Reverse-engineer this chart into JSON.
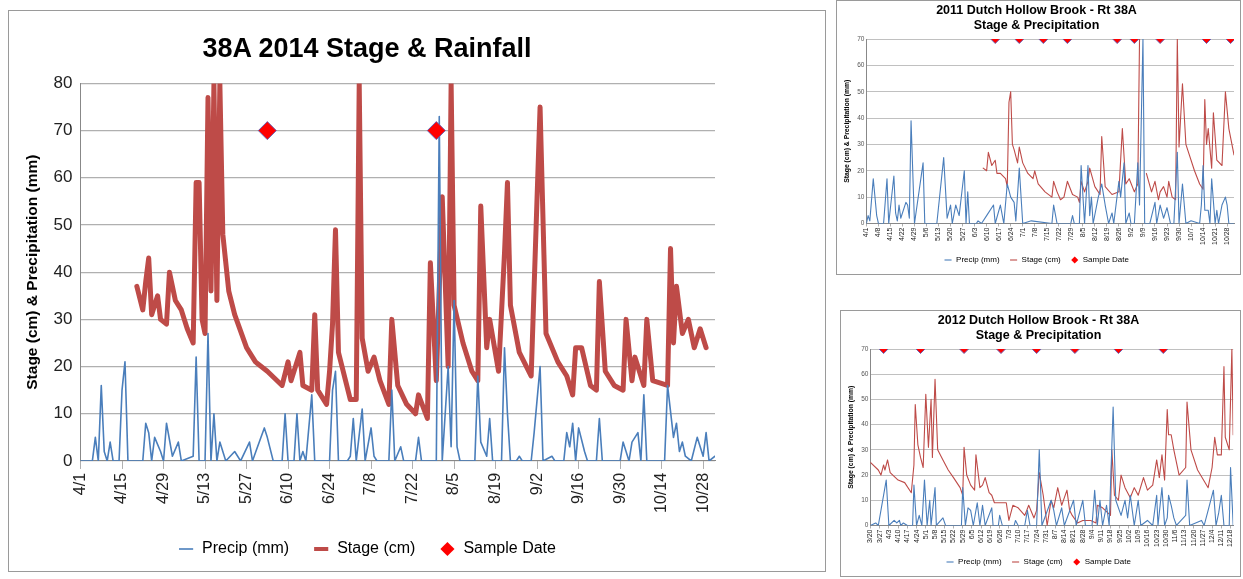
{
  "chart_data": [
    {
      "type": "line",
      "title": "38A 2014 Stage & Rainfall",
      "ylabel": "Stage (cm) & Precipitation (mm)",
      "xlim": [
        "--04-01",
        "--11-01"
      ],
      "ylim": [
        0,
        80
      ],
      "yticks": [
        0,
        10,
        20,
        30,
        40,
        50,
        60,
        70,
        80
      ],
      "grid": "y",
      "legend": "bottom",
      "xticks": [
        {
          "value": "--04-01",
          "label": "4/1"
        },
        {
          "value": "--04-15",
          "label": "4/15"
        },
        {
          "value": "--04-29",
          "label": "4/29"
        },
        {
          "value": "--05-13",
          "label": "5/13"
        },
        {
          "value": "--05-27",
          "label": "5/27"
        },
        {
          "value": "--06-10",
          "label": "6/10"
        },
        {
          "value": "--06-24",
          "label": "6/24"
        },
        {
          "value": "--07-08",
          "label": "7/8"
        },
        {
          "value": "--07-22",
          "label": "7/22"
        },
        {
          "value": "--08-05",
          "label": "8/5"
        },
        {
          "value": "--08-19",
          "label": "8/19"
        },
        {
          "value": "--09-02",
          "label": "9/2"
        },
        {
          "value": "--09-16",
          "label": "9/16"
        },
        {
          "value": "--09-30",
          "label": "9/30"
        },
        {
          "value": "--10-14",
          "label": "10/14"
        },
        {
          "value": "--10-28",
          "label": "10/28"
        }
      ],
      "series": [
        {
          "name": "Precip (mm)",
          "type": "line",
          "color": "#4a7ebb",
          "x": [
            "--04-01",
            "--04-05",
            "--04-06",
            "--04-07",
            "--04-08",
            "--04-09",
            "--04-10",
            "--04-11",
            "--04-12",
            "--04-14",
            "--04-15",
            "--04-16",
            "--04-17",
            "--04-22",
            "--04-23",
            "--04-24",
            "--04-25",
            "--04-26",
            "--04-28",
            "--04-29",
            "--04-30",
            "--05-02",
            "--05-04",
            "--05-05",
            "--05-09",
            "--05-10",
            "--05-11",
            "--05-13",
            "--05-14",
            "--05-15",
            "--05-16",
            "--05-17",
            "--05-18",
            "--05-20",
            "--05-23",
            "--05-25",
            "--05-28",
            "--05-29",
            "--06-02",
            "--06-03",
            "--06-05",
            "--06-08",
            "--06-09",
            "--06-10",
            "--06-12",
            "--06-13",
            "--06-14",
            "--06-15",
            "--06-16",
            "--06-18",
            "--06-19",
            "--06-24",
            "--06-25",
            "--06-26",
            "--06-27",
            "--06-30",
            "--07-01",
            "--07-02",
            "--07-03",
            "--07-05",
            "--07-06",
            "--07-08",
            "--07-09",
            "--07-10",
            "--07-14",
            "--07-15",
            "--07-16",
            "--07-18",
            "--07-19",
            "--07-23",
            "--07-24",
            "--07-25",
            "--07-30",
            "--07-31",
            "--08-01",
            "--08-03",
            "--08-04",
            "--08-05",
            "--08-06",
            "--08-07",
            "--08-12",
            "--08-13",
            "--08-14",
            "--08-16",
            "--08-17",
            "--08-18",
            "--08-21",
            "--08-22",
            "--08-23",
            "--08-24",
            "--08-26",
            "--08-27",
            "--08-28",
            "--08-31",
            "--09-01",
            "--09-03",
            "--09-04",
            "--09-07",
            "--09-08",
            "--09-11",
            "--09-12",
            "--09-13",
            "--09-14",
            "--09-15",
            "--09-16",
            "--09-18",
            "--09-19",
            "--09-22",
            "--09-23",
            "--09-24",
            "--09-30",
            "--10-01",
            "--10-03",
            "--10-04",
            "--10-06",
            "--10-07",
            "--10-08",
            "--10-09",
            "--10-15",
            "--10-16",
            "--10-18",
            "--10-19",
            "--10-20",
            "--10-21",
            "--10-22",
            "--10-24",
            "--10-26",
            "--10-28",
            "--10-29",
            "--10-30",
            "--11-01"
          ],
          "values": [
            0,
            0,
            5,
            0,
            16,
            2,
            0,
            4,
            0,
            0,
            15,
            21,
            0,
            0,
            8,
            6,
            0,
            5,
            2,
            0,
            8,
            1,
            4,
            0,
            1,
            22,
            0,
            0,
            27,
            0,
            10,
            0,
            4,
            0,
            2,
            0,
            4,
            0,
            7,
            5,
            0,
            0,
            10,
            0,
            0,
            10,
            0,
            2,
            0,
            14,
            0,
            0,
            15,
            19,
            0,
            0,
            1,
            9,
            0,
            11,
            0,
            7,
            1,
            0,
            0,
            15,
            0,
            3,
            0,
            0,
            5,
            0,
            0,
            73,
            0,
            20,
            3,
            34,
            3,
            0,
            0,
            18,
            4,
            1,
            9,
            0,
            0,
            24,
            10,
            0,
            0,
            1,
            0,
            0,
            6,
            20,
            0,
            1,
            0,
            0,
            6,
            3,
            8,
            0,
            7,
            2,
            0,
            0,
            9,
            0,
            0,
            4,
            0,
            4,
            6,
            0,
            14,
            0,
            0,
            16,
            5,
            8,
            2,
            4,
            1,
            0,
            5,
            1,
            6,
            0,
            1
          ]
        },
        {
          "name": "Stage (cm)",
          "type": "line",
          "color": "#be4b48",
          "x": [
            "--04-20",
            "--04-22",
            "--04-23",
            "--04-24",
            "--04-25",
            "--04-27",
            "--04-28",
            "--04-30",
            "--05-01",
            "--05-03",
            "--05-05",
            "--05-07",
            "--05-09",
            "--05-10",
            "--05-11",
            "--05-12",
            "--05-13",
            "--05-14",
            "--05-15",
            "--05-16",
            "--05-17",
            "--05-18",
            "--05-19",
            "--05-21",
            "--05-23",
            "--05-27",
            "--05-30",
            "--06-03",
            "--06-08",
            "--06-10",
            "--06-11",
            "--06-14",
            "--06-15",
            "--06-18",
            "--06-19",
            "--06-20",
            "--06-23",
            "--06-24",
            "--06-25",
            "--06-26",
            "--06-27",
            "--07-01",
            "--07-03",
            "--07-04",
            "--07-05",
            "--07-07",
            "--07-09",
            "--07-11",
            "--07-14",
            "--07-15",
            "--07-17",
            "--07-20",
            "--07-23",
            "--07-24",
            "--07-27",
            "--07-28",
            "--07-30",
            "--08-01",
            "--08-03",
            "--08-04",
            "--08-05",
            "--08-08",
            "--08-11",
            "--08-13",
            "--08-14",
            "--08-16",
            "--08-17",
            "--08-20",
            "--08-22",
            "--08-23",
            "--08-24",
            "--08-27",
            "--08-31",
            "--09-03",
            "--09-05",
            "--09-09",
            "--09-12",
            "--09-14",
            "--09-15",
            "--09-17",
            "--09-20",
            "--09-22",
            "--09-23",
            "--09-25",
            "--09-28",
            "--10-01",
            "--10-02",
            "--10-04",
            "--10-05",
            "--10-08",
            "--10-09",
            "--10-11",
            "--10-16",
            "--10-17",
            "--10-18",
            "--10-19",
            "--10-21",
            "--10-23",
            "--10-25",
            "--10-27",
            "--10-29"
          ],
          "values": [
            37,
            32,
            38,
            43,
            31,
            35,
            30,
            29,
            40,
            34,
            32,
            28,
            25,
            59,
            59,
            30,
            27,
            77,
            36,
            80,
            34,
            80,
            48,
            36,
            31,
            24,
            21,
            19,
            16,
            21,
            17,
            23,
            16,
            15,
            31,
            15,
            12,
            19,
            29,
            49,
            23,
            13,
            13,
            80,
            26,
            19,
            22,
            17,
            12,
            30,
            16,
            12,
            10,
            14,
            9,
            42,
            17,
            56,
            20,
            80,
            33,
            25,
            19,
            17,
            54,
            24,
            30,
            19,
            44,
            59,
            33,
            23,
            18,
            75,
            27,
            21,
            18,
            14,
            24,
            24,
            16,
            15,
            38,
            19,
            16,
            15,
            30,
            17,
            22,
            16,
            30,
            17,
            16,
            45,
            25,
            37,
            27,
            30,
            24,
            28,
            24
          ]
        },
        {
          "name": "Sample Date",
          "type": "scatter",
          "marker": "diamond",
          "color": "#ff0000",
          "x": [
            "--06-03",
            "--07-30"
          ],
          "values": [
            70,
            70
          ]
        }
      ]
    },
    {
      "type": "line",
      "title": "2011 Dutch Hollow Brook - Rt 38A",
      "subtitle": "Stage & Precipitation",
      "ylabel": "Stage (cm) & Precipitation (mm)",
      "xlim": [
        "--04-01",
        "--11-01"
      ],
      "ylim": [
        0,
        70
      ],
      "yticks": [
        0,
        10,
        20,
        30,
        40,
        50,
        60,
        70
      ],
      "grid": "y",
      "legend": "bottom",
      "xticks": [
        {
          "value": "--04-01",
          "label": "4/1"
        },
        {
          "value": "--04-08",
          "label": "4/8"
        },
        {
          "value": "--04-15",
          "label": "4/15"
        },
        {
          "value": "--04-22",
          "label": "4/22"
        },
        {
          "value": "--04-29",
          "label": "4/29"
        },
        {
          "value": "--05-06",
          "label": "5/6"
        },
        {
          "value": "--05-13",
          "label": "5/13"
        },
        {
          "value": "--05-20",
          "label": "5/20"
        },
        {
          "value": "--05-27",
          "label": "5/27"
        },
        {
          "value": "--06-03",
          "label": "6/3"
        },
        {
          "value": "--06-10",
          "label": "6/10"
        },
        {
          "value": "--06-17",
          "label": "6/17"
        },
        {
          "value": "--06-24",
          "label": "6/24"
        },
        {
          "value": "--07-01",
          "label": "7/1"
        },
        {
          "value": "--07-08",
          "label": "7/8"
        },
        {
          "value": "--07-15",
          "label": "7/15"
        },
        {
          "value": "--07-22",
          "label": "7/22"
        },
        {
          "value": "--07-29",
          "label": "7/29"
        },
        {
          "value": "--08-05",
          "label": "8/5"
        },
        {
          "value": "--08-12",
          "label": "8/12"
        },
        {
          "value": "--08-19",
          "label": "8/19"
        },
        {
          "value": "--08-26",
          "label": "8/26"
        },
        {
          "value": "--09-02",
          "label": "9/2"
        },
        {
          "value": "--09-09",
          "label": "9/9"
        },
        {
          "value": "--09-16",
          "label": "9/16"
        },
        {
          "value": "--09-23",
          "label": "9/23"
        },
        {
          "value": "--09-30",
          "label": "9/30"
        },
        {
          "value": "--10-07",
          "label": "10/7"
        },
        {
          "value": "--10-14",
          "label": "10/14"
        },
        {
          "value": "--10-21",
          "label": "10/21"
        },
        {
          "value": "--10-28",
          "label": "10/28"
        }
      ],
      "series": [
        {
          "name": "Precip (mm)",
          "type": "line",
          "color": "#4a7ebb",
          "x": [
            "--04-01",
            "--04-02",
            "--04-03",
            "--04-05",
            "--04-07",
            "--04-08",
            "--04-11",
            "--04-13",
            "--04-14",
            "--04-17",
            "--04-18",
            "--04-19",
            "--04-20",
            "--04-21",
            "--04-24",
            "--04-25",
            "--04-26",
            "--04-27",
            "--04-29",
            "--05-04",
            "--05-05",
            "--05-12",
            "--05-16",
            "--05-18",
            "--05-20",
            "--05-21",
            "--05-23",
            "--05-25",
            "--05-28",
            "--05-29",
            "--05-30",
            "--05-31",
            "--06-04",
            "--06-05",
            "--06-07",
            "--06-10",
            "--06-14",
            "--06-15",
            "--06-18",
            "--06-20",
            "--06-22",
            "--06-24",
            "--06-26",
            "--06-27",
            "--06-29",
            "--07-01",
            "--07-06",
            "--07-18",
            "--07-19",
            "--07-21",
            "--07-29",
            "--07-30",
            "--07-31",
            "--08-03",
            "--08-04",
            "--08-06",
            "--08-08",
            "--08-09",
            "--08-10",
            "--08-11",
            "--08-14",
            "--08-16",
            "--08-18",
            "--08-20",
            "--08-22",
            "--08-23",
            "--08-26",
            "--08-27",
            "--08-29",
            "--08-30",
            "--09-01",
            "--09-02",
            "--09-04",
            "--09-06",
            "--09-07",
            "--09-09",
            "--09-10",
            "--09-13",
            "--09-16",
            "--09-17",
            "--09-19",
            "--09-21",
            "--09-23",
            "--09-25",
            "--09-27",
            "--09-29",
            "--09-30",
            "--10-02",
            "--10-04",
            "--10-07",
            "--10-12",
            "--10-13",
            "--10-14",
            "--10-15",
            "--10-17",
            "--10-18",
            "--10-19",
            "--10-21",
            "--10-22",
            "--10-23",
            "--10-25",
            "--10-27",
            "--10-28",
            "--10-29",
            "--11-01"
          ],
          "values": [
            0,
            3,
            1,
            17,
            3,
            0,
            0,
            17,
            0,
            18,
            4,
            1,
            7,
            2,
            8,
            7,
            2,
            39,
            0,
            23,
            0,
            0,
            25,
            2,
            7,
            0,
            7,
            3,
            20,
            0,
            12,
            0,
            0,
            1,
            0,
            3,
            7,
            0,
            7,
            0,
            15,
            10,
            8,
            1,
            21,
            0,
            1,
            0,
            7,
            0,
            0,
            3,
            0,
            0,
            22,
            0,
            22,
            3,
            10,
            0,
            10,
            15,
            7,
            0,
            4,
            0,
            16,
            10,
            23,
            0,
            4,
            0,
            0,
            23,
            7,
            70,
            0,
            0,
            8,
            0,
            7,
            2,
            6,
            0,
            0,
            27,
            0,
            15,
            0,
            1,
            0,
            7,
            22,
            5,
            5,
            0,
            17,
            0,
            5,
            0,
            7,
            10,
            7,
            0,
            0
          ]
        },
        {
          "name": "Stage (cm)",
          "type": "line",
          "color": "#be4b48",
          "x": [
            "--06-08",
            "--06-10",
            "--06-11",
            "--06-13",
            "--06-15",
            "--06-16",
            "--06-18",
            "--06-21",
            "--06-22",
            "--06-23",
            "--06-24",
            "--06-25",
            "--06-26",
            "--06-28",
            "--06-29",
            "--07-01",
            "--07-04",
            "--07-07",
            "--07-08",
            "--07-10",
            "--07-14",
            "--07-18",
            "--07-19",
            "--07-21",
            "--07-23",
            "--07-25",
            "--07-27",
            "--07-30",
            "--08-02",
            "--08-03",
            "--08-04",
            "--08-06",
            "--08-08",
            "--08-09",
            "--08-12",
            "--08-15",
            "--08-16",
            "--08-18",
            "--08-22",
            "--08-26",
            "--08-28",
            "--08-30",
            "--09-01",
            "--09-04",
            "--09-06",
            "--09-07",
            "--09-08",
            "--09-11",
            "--09-14",
            "--09-16",
            "--09-18",
            "--09-19",
            "--09-21",
            "--09-23",
            "--09-24",
            "--09-26",
            "--09-28",
            "--09-29",
            "--09-30",
            "--10-02",
            "--10-04",
            "--10-09",
            "--10-12",
            "--10-14",
            "--10-15",
            "--10-16",
            "--10-17",
            "--10-19",
            "--10-20",
            "--10-22",
            "--10-25",
            "--10-27",
            "--10-29",
            "--11-01"
          ],
          "values": [
            21,
            20,
            27,
            22,
            24,
            19,
            19,
            17,
            14,
            46,
            50,
            30,
            28,
            23,
            29,
            23,
            19,
            17,
            20,
            15,
            12,
            10,
            16,
            12,
            9,
            10,
            16,
            11,
            10,
            8,
            16,
            12,
            16,
            21,
            14,
            11,
            33,
            14,
            11,
            12,
            36,
            15,
            17,
            12,
            15,
            70,
            null,
            19,
            12,
            16,
            9,
            12,
            14,
            10,
            16,
            10,
            9,
            70,
            29,
            53,
            30,
            20,
            15,
            13,
            47,
            30,
            36,
            21,
            42,
            24,
            22,
            50,
            36,
            26
          ]
        },
        {
          "name": "Sample Date",
          "type": "scatter",
          "marker": "diamond",
          "color": "#ff0000",
          "x": [
            "--06-15",
            "--06-29",
            "--07-13",
            "--07-27",
            "--08-25",
            "--09-04",
            "--09-19",
            "--10-16",
            "--10-30"
          ],
          "values": [
            70,
            70,
            70,
            70,
            70,
            70,
            70,
            70,
            70
          ]
        }
      ]
    },
    {
      "type": "line",
      "title": "2012 Dutch Hollow Brook - Rt 38A",
      "subtitle": "Stage & Precipitation",
      "ylabel": "Stage (cm) & Precipitation (mm)",
      "xlim": [
        "--03-20",
        "--12-20"
      ],
      "ylim": [
        0,
        70
      ],
      "yticks": [
        0,
        10,
        20,
        30,
        40,
        50,
        60,
        70
      ],
      "grid": "y",
      "legend": "bottom",
      "xticks": [
        {
          "value": "--03-20",
          "label": "3/20"
        },
        {
          "value": "--03-27",
          "label": "3/27"
        },
        {
          "value": "--04-03",
          "label": "4/3"
        },
        {
          "value": "--04-10",
          "label": "4/10"
        },
        {
          "value": "--04-17",
          "label": "4/17"
        },
        {
          "value": "--04-24",
          "label": "4/24"
        },
        {
          "value": "--05-01",
          "label": "5/1"
        },
        {
          "value": "--05-08",
          "label": "5/8"
        },
        {
          "value": "--05-15",
          "label": "5/15"
        },
        {
          "value": "--05-22",
          "label": "5/22"
        },
        {
          "value": "--05-29",
          "label": "5/29"
        },
        {
          "value": "--06-05",
          "label": "6/5"
        },
        {
          "value": "--06-12",
          "label": "6/12"
        },
        {
          "value": "--06-19",
          "label": "6/19"
        },
        {
          "value": "--06-26",
          "label": "6/26"
        },
        {
          "value": "--07-03",
          "label": "7/3"
        },
        {
          "value": "--07-10",
          "label": "7/10"
        },
        {
          "value": "--07-17",
          "label": "7/17"
        },
        {
          "value": "--07-24",
          "label": "7/24"
        },
        {
          "value": "--07-31",
          "label": "7/31"
        },
        {
          "value": "--08-07",
          "label": "8/7"
        },
        {
          "value": "--08-14",
          "label": "8/14"
        },
        {
          "value": "--08-21",
          "label": "8/21"
        },
        {
          "value": "--08-28",
          "label": "8/28"
        },
        {
          "value": "--09-04",
          "label": "9/4"
        },
        {
          "value": "--09-11",
          "label": "9/11"
        },
        {
          "value": "--09-18",
          "label": "9/18"
        },
        {
          "value": "--09-25",
          "label": "9/25"
        },
        {
          "value": "--10-02",
          "label": "10/2"
        },
        {
          "value": "--10-09",
          "label": "10/9"
        },
        {
          "value": "--10-16",
          "label": "10/16"
        },
        {
          "value": "--10-23",
          "label": "10/23"
        },
        {
          "value": "--10-30",
          "label": "10/30"
        },
        {
          "value": "--11-06",
          "label": "11/6"
        },
        {
          "value": "--11-13",
          "label": "11/13"
        },
        {
          "value": "--11-20",
          "label": "11/20"
        },
        {
          "value": "--11-27",
          "label": "11/27"
        },
        {
          "value": "--12-04",
          "label": "12/4"
        },
        {
          "value": "--12-11",
          "label": "12/11"
        },
        {
          "value": "--12-18",
          "label": "12/18"
        }
      ],
      "series": [
        {
          "name": "Precip (mm)",
          "type": "line",
          "color": "#4a7ebb",
          "x": [
            "--03-20",
            "--03-24",
            "--03-26",
            "--04-01",
            "--04-03",
            "--04-07",
            "--04-09",
            "--04-11",
            "--04-12",
            "--04-14",
            "--04-17",
            "--04-21",
            "--04-22",
            "--04-24",
            "--04-26",
            "--04-28",
            "--04-30",
            "--05-02",
            "--05-04",
            "--05-05",
            "--05-08",
            "--05-09",
            "--05-14",
            "--05-16",
            "--05-28",
            "--05-29",
            "--05-31",
            "--06-02",
            "--06-04",
            "--06-06",
            "--06-09",
            "--06-11",
            "--06-13",
            "--06-15",
            "--06-20",
            "--06-21",
            "--06-25",
            "--06-26",
            "--06-28",
            "--07-07",
            "--07-08",
            "--07-10",
            "--07-15",
            "--07-17",
            "--07-19",
            "--07-24",
            "--07-26",
            "--07-28",
            "--08-04",
            "--08-06",
            "--08-08",
            "--08-12",
            "--08-14",
            "--08-21",
            "--08-23",
            "--08-28",
            "--08-30",
            "--09-04",
            "--09-06",
            "--09-08",
            "--09-10",
            "--09-12",
            "--09-15",
            "--09-17",
            "--09-20",
            "--09-22",
            "--09-26",
            "--09-29",
            "--10-01",
            "--10-03",
            "--10-06",
            "--10-09",
            "--10-11",
            "--10-16",
            "--10-20",
            "--10-23",
            "--10-24",
            "--10-27",
            "--10-29",
            "--10-31",
            "--11-01",
            "--11-03",
            "--11-05",
            "--11-07",
            "--11-14",
            "--11-15",
            "--11-17",
            "--11-26",
            "--11-28",
            "--12-05",
            "--12-07",
            "--12-09",
            "--12-11",
            "--12-13",
            "--12-17",
            "--12-18",
            "--12-20"
          ],
          "values": [
            0,
            1,
            0,
            18,
            0,
            2,
            1,
            2,
            0,
            1,
            0,
            0,
            16,
            0,
            4,
            0,
            18,
            0,
            10,
            0,
            15,
            0,
            3,
            0,
            0,
            15,
            0,
            7,
            6,
            0,
            9,
            0,
            8,
            0,
            7,
            0,
            0,
            4,
            0,
            0,
            2,
            0,
            0,
            6,
            0,
            0,
            30,
            0,
            10,
            6,
            0,
            7,
            0,
            10,
            0,
            10,
            0,
            0,
            14,
            0,
            10,
            0,
            8,
            0,
            47,
            10,
            4,
            10,
            3,
            12,
            0,
            10,
            0,
            2,
            0,
            12,
            0,
            15,
            0,
            3,
            12,
            8,
            3,
            0,
            4,
            18,
            0,
            2,
            0,
            14,
            0,
            5,
            12,
            0,
            0,
            23,
            0
          ]
        },
        {
          "name": "Stage (cm)",
          "type": "line",
          "color": "#be4b48",
          "x": [
            "--03-20",
            "--03-26",
            "--03-28",
            "--03-30",
            "--03-31",
            "--04-02",
            "--04-04",
            "--04-10",
            "--04-15",
            "--04-20",
            "--04-22",
            "--04-23",
            "--04-25",
            "--04-27",
            "--04-29",
            "--05-01",
            "--05-03",
            "--05-05",
            "--05-06",
            "--05-08",
            "--05-10",
            "--05-14",
            "--05-18",
            "--05-22",
            "--05-27",
            "--05-29",
            "--05-30",
            "--06-01",
            "--06-04",
            "--06-07",
            "--06-08",
            "--06-11",
            "--06-13",
            "--06-15",
            "--06-18",
            "--06-20",
            "--06-22",
            "--07-01",
            "--07-03",
            "--07-06",
            "--07-10",
            "--07-15",
            "--07-18",
            "--07-22",
            "--07-24",
            "--07-26",
            "--07-29",
            "--08-01",
            "--08-04",
            "--08-06",
            "--08-09",
            "--08-12",
            "--08-16",
            "--08-18",
            "--08-20",
            "--08-24",
            "--08-28",
            "--09-03",
            "--09-07",
            "--09-08",
            "--09-12",
            "--09-18",
            "--09-19",
            "--09-21",
            "--09-24",
            "--09-26",
            "--09-29",
            "--10-03",
            "--10-06",
            "--10-09",
            "--10-13",
            "--10-16",
            "--10-20",
            "--10-23",
            "--10-25",
            "--10-27",
            "--10-29",
            "--10-31",
            "--11-01",
            "--11-03",
            "--11-05",
            "--11-09",
            "--11-14",
            "--11-15",
            "--11-18",
            "--11-23",
            "--12-01",
            "--12-04",
            "--12-06",
            "--12-08",
            "--12-11",
            "--12-13",
            "--12-14",
            "--12-17",
            "--12-19",
            "--12-20"
          ],
          "values": [
            25,
            22,
            20,
            24,
            22,
            26,
            21,
            18,
            17,
            13,
            24,
            48,
            32,
            27,
            23,
            52,
            31,
            50,
            27,
            58,
            30,
            26,
            22,
            19,
            15,
            12,
            31,
            20,
            16,
            14,
            28,
            15,
            16,
            19,
            13,
            12,
            9,
            9,
            2,
            8,
            7,
            4,
            8,
            3,
            6,
            21,
            12,
            0,
            10,
            7,
            15,
            8,
            14,
            6,
            4,
            1,
            2,
            2,
            1,
            8,
            7,
            4,
            30,
            12,
            10,
            20,
            15,
            11,
            15,
            12,
            19,
            14,
            16,
            26,
            19,
            28,
            18,
            46,
            36,
            36,
            30,
            20,
            23,
            49,
            30,
            22,
            15,
            23,
            35,
            28,
            28,
            63,
            35,
            30,
            70,
            36
          ]
        },
        {
          "name": "Sample Date",
          "type": "scatter",
          "marker": "diamond",
          "color": "#ff0000",
          "x": [
            "--03-30",
            "--04-27",
            "--05-30",
            "--06-27",
            "--07-24",
            "--08-22",
            "--09-24",
            "--10-28"
          ],
          "values": [
            70,
            70,
            70,
            70,
            70,
            70,
            70,
            70
          ]
        }
      ]
    }
  ]
}
